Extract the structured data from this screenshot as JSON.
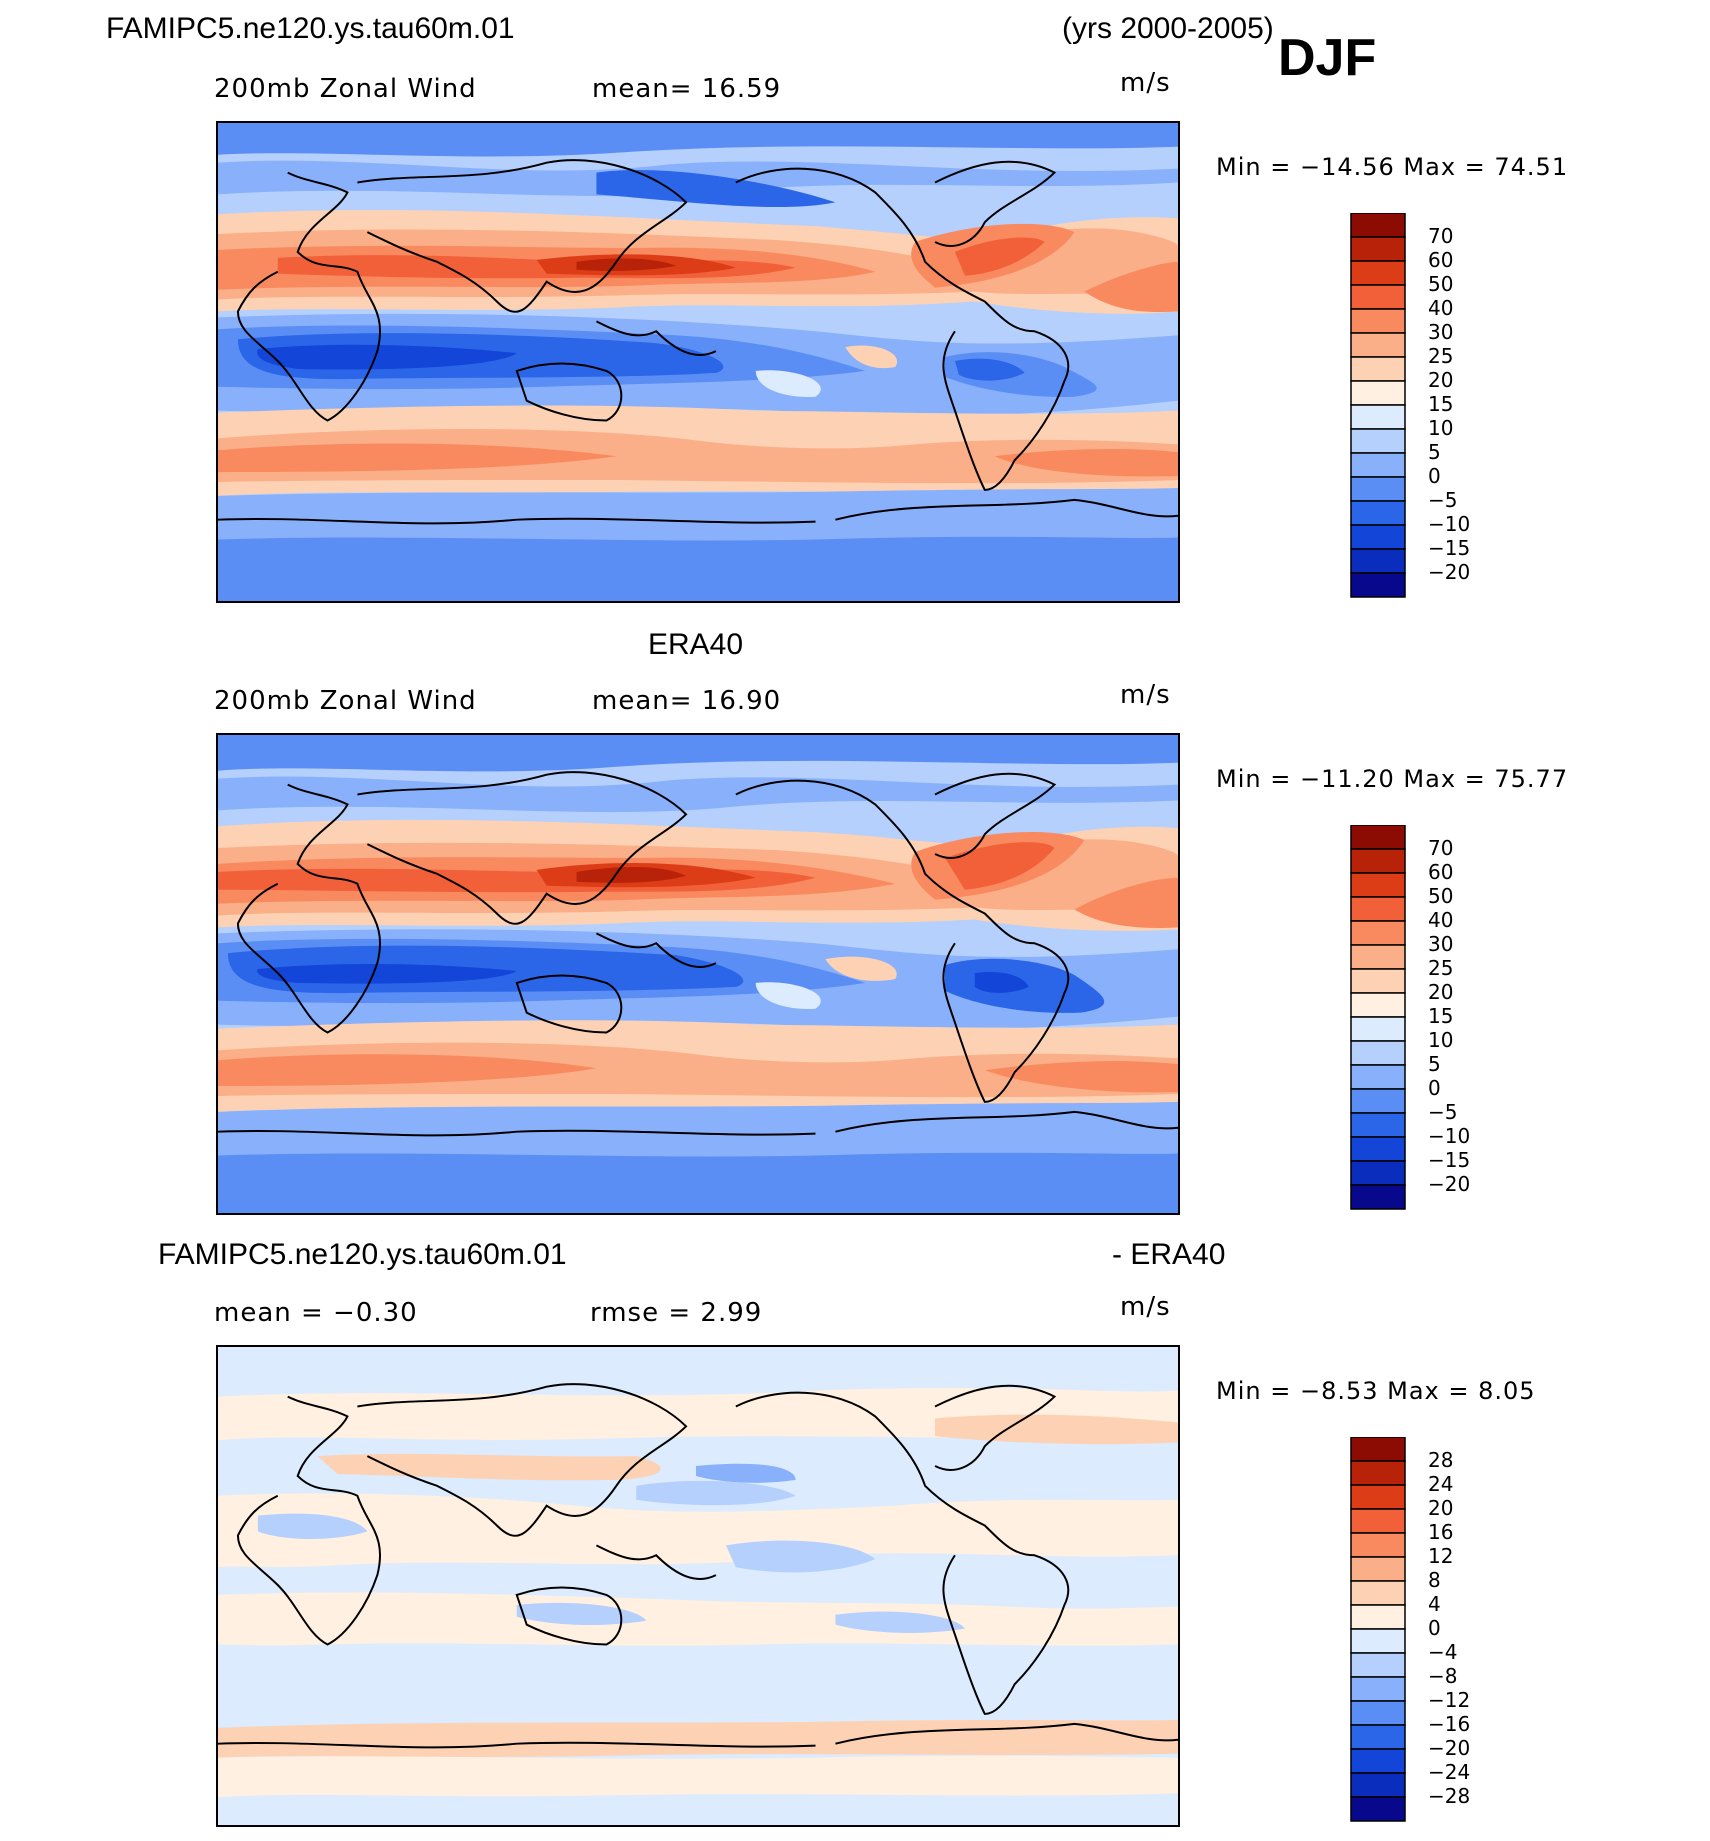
{
  "header": {
    "case_name": "FAMIPC5.ne120.ys.tau60m.01",
    "years": "(yrs 2000-2005)",
    "season": "DJF"
  },
  "colors": {
    "ramp_full": [
      "#08088c",
      "#0a2dbd",
      "#1245d8",
      "#2b66e8",
      "#5b8ef5",
      "#89b0fb",
      "#b5d0fc",
      "#dcebfd",
      "#fff0e1",
      "#fdd2b4",
      "#fbaf88",
      "#f98a5f",
      "#f2603a",
      "#dd3d16",
      "#b82208",
      "#8c0c04"
    ],
    "ramp_diff": [
      "#08088c",
      "#0a2dbd",
      "#1245d8",
      "#2b66e8",
      "#5b8ef5",
      "#89b0fb",
      "#b5d0fc",
      "#dcebfd",
      "#fff0e1",
      "#fdd2b4",
      "#fbaf88",
      "#f98a5f",
      "#f2603a",
      "#dd3d16",
      "#b82208",
      "#8c0c04"
    ]
  },
  "panels": [
    {
      "title": "",
      "subtitle_left": "200mb Zonal Wind",
      "subtitle_mid": "mean=   16.59",
      "units": "m/s",
      "min_max": "Min = −14.56 Max =   74.51",
      "colorbar": {
        "labels": [
          "70",
          "60",
          "50",
          "40",
          "30",
          "25",
          "20",
          "15",
          "10",
          "5",
          "0",
          "−5",
          "−10",
          "−15",
          "−20"
        ]
      }
    },
    {
      "title": "ERA40",
      "subtitle_left": "200mb Zonal Wind",
      "subtitle_mid": "mean=   16.90",
      "units": "m/s",
      "min_max": "Min = −11.20 Max =   75.77",
      "colorbar": {
        "labels": [
          "70",
          "60",
          "50",
          "40",
          "30",
          "25",
          "20",
          "15",
          "10",
          "5",
          "0",
          "−5",
          "−10",
          "−15",
          "−20"
        ]
      }
    },
    {
      "title_left": "FAMIPC5.ne120.ys.tau60m.01",
      "title_right": "- ERA40",
      "subtitle_left": "mean =   −0.30",
      "subtitle_mid": "rmse =    2.99",
      "units": "m/s",
      "min_max": "Min =   −8.53 Max =    8.05",
      "colorbar": {
        "labels": [
          "28",
          "24",
          "20",
          "16",
          "12",
          "8",
          "4",
          "0",
          "−4",
          "−8",
          "−12",
          "−16",
          "−20",
          "−24",
          "−28"
        ]
      }
    }
  ],
  "chart_data": [
    {
      "type": "heatmap",
      "title": "FAMIPC5.ne120.ys.tau60m.01",
      "subtitle": "200mb Zonal Wind",
      "units": "m/s",
      "mean": 16.59,
      "min": -14.56,
      "max": 74.51,
      "contour_levels": [
        -20,
        -15,
        -10,
        -5,
        0,
        5,
        10,
        15,
        20,
        25,
        30,
        40,
        50,
        60,
        70
      ]
    },
    {
      "type": "heatmap",
      "title": "ERA40",
      "subtitle": "200mb Zonal Wind",
      "units": "m/s",
      "mean": 16.9,
      "min": -11.2,
      "max": 75.77,
      "contour_levels": [
        -20,
        -15,
        -10,
        -5,
        0,
        5,
        10,
        15,
        20,
        25,
        30,
        40,
        50,
        60,
        70
      ]
    },
    {
      "type": "heatmap",
      "title": "FAMIPC5.ne120.ys.tau60m.01 - ERA40",
      "units": "m/s",
      "mean": -0.3,
      "rmse": 2.99,
      "min": -8.53,
      "max": 8.05,
      "contour_levels": [
        -28,
        -24,
        -20,
        -16,
        -12,
        -8,
        -4,
        0,
        4,
        8,
        12,
        16,
        20,
        24,
        28
      ]
    }
  ]
}
